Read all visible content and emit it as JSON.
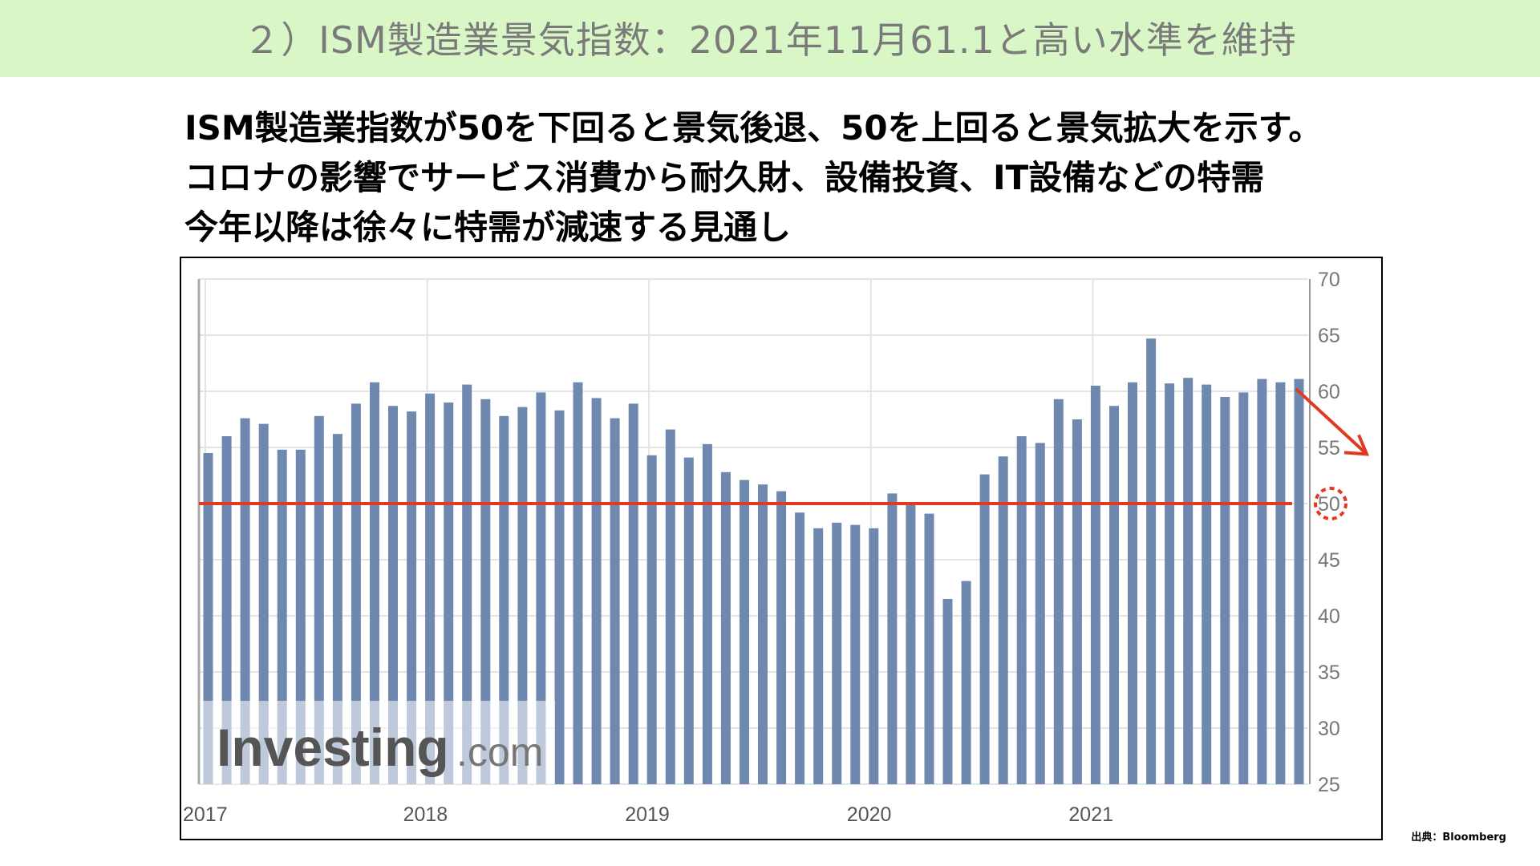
{
  "slide": {
    "title": "２）ISM製造業景気指数：2021年11月61.1と高い水準を維持",
    "headline_lines": [
      "ISM製造業指数が50を下回ると景気後退、50を上回ると景気拡大を示す。",
      "コロナの影響でサービス消費から耐久財、設備投資、IT設備などの特需",
      "今年以降は徐々に特需が減速する見通し"
    ],
    "source": "出典：Bloomberg",
    "watermark": {
      "brand": "Investing",
      "suffix": ".com"
    }
  },
  "colors": {
    "title_band": "#d9f7c6",
    "bar": "#6f88b0",
    "threshold_line": "#e03a22",
    "grid": "#e4e4e4"
  },
  "chart_data": {
    "type": "bar",
    "ylim": [
      25,
      70
    ],
    "yticks": [
      25,
      30,
      35,
      40,
      45,
      50,
      55,
      60,
      65,
      70
    ],
    "y_axis_position": "right",
    "x_labels": [
      {
        "label": "2017",
        "index": 0
      },
      {
        "label": "2018",
        "index": 12
      },
      {
        "label": "2019",
        "index": 24
      },
      {
        "label": "2020",
        "index": 36
      },
      {
        "label": "2021",
        "index": 48
      }
    ],
    "values": [
      54.5,
      56.0,
      57.6,
      57.1,
      54.8,
      54.8,
      57.8,
      56.2,
      58.9,
      60.8,
      58.7,
      58.2,
      59.8,
      59.0,
      60.6,
      59.3,
      57.8,
      58.6,
      59.9,
      58.3,
      60.8,
      59.4,
      57.6,
      58.9,
      54.3,
      56.6,
      54.1,
      55.3,
      52.8,
      52.1,
      51.7,
      51.1,
      49.2,
      47.8,
      48.3,
      48.1,
      47.8,
      50.9,
      50.1,
      49.1,
      41.5,
      43.1,
      52.6,
      54.2,
      56.0,
      55.4,
      59.3,
      57.5,
      60.5,
      58.7,
      60.8,
      64.7,
      60.7,
      61.2,
      60.6,
      59.5,
      59.9,
      61.1,
      60.8,
      61.1
    ],
    "threshold": 50,
    "grid": true,
    "annotations": [
      "red horizontal line at 50",
      "dashed circle around 50 tick",
      "downward arrow at right"
    ]
  }
}
